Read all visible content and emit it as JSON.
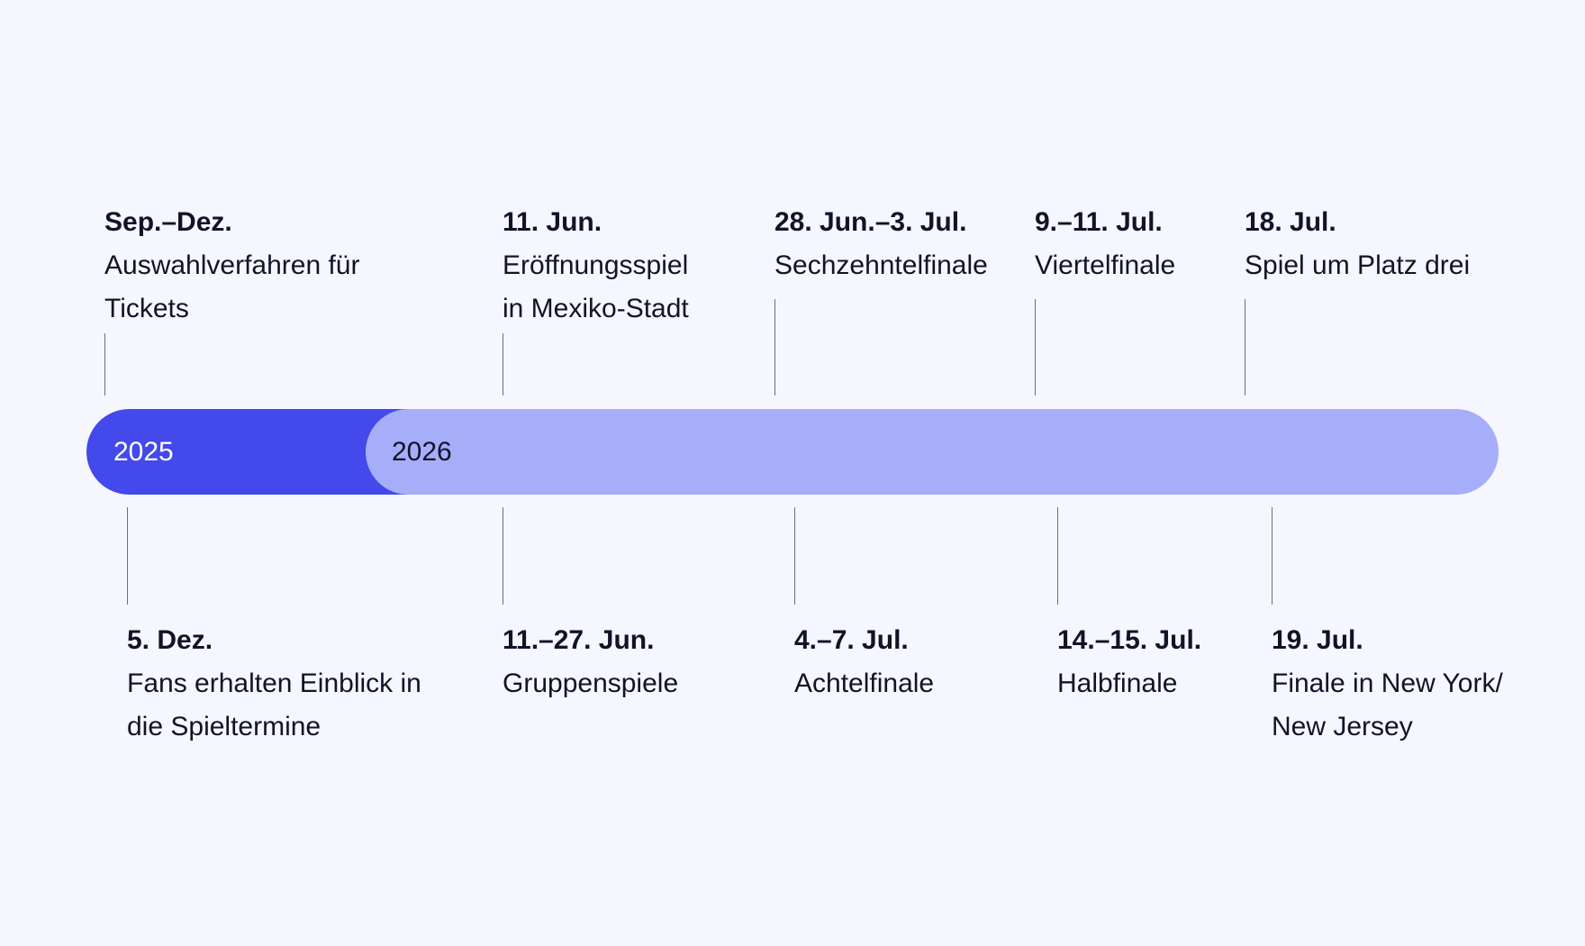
{
  "colors": {
    "year_2025": "#4349ea",
    "year_2026": "#a6aefa",
    "background": "#f5f6fe"
  },
  "years": [
    "2025",
    "2026"
  ],
  "top_events": [
    {
      "date": "Sep.–Dez.",
      "lines": [
        "Auswahlverfahren für",
        "Tickets"
      ]
    },
    {
      "date": "11. Jun.",
      "lines": [
        "Eröffnungsspiel",
        "in Mexiko-Stadt"
      ]
    },
    {
      "date": "28. Jun.–3. Jul.",
      "lines": [
        "Sechzehntelfinale"
      ]
    },
    {
      "date": "9.–11. Jul.",
      "lines": [
        "Viertelfinale"
      ]
    },
    {
      "date": "18. Jul.",
      "lines": [
        "Spiel um Platz drei"
      ]
    }
  ],
  "bottom_events": [
    {
      "date": "5. Dez.",
      "lines": [
        "Fans erhalten Einblick in",
        "die Spieltermine"
      ]
    },
    {
      "date": "11.–27. Jun.",
      "lines": [
        "Gruppenspiele"
      ]
    },
    {
      "date": "4.–7. Jul.",
      "lines": [
        "Achtelfinale"
      ]
    },
    {
      "date": "14.–15. Jul.",
      "lines": [
        "Halbfinale"
      ]
    },
    {
      "date": "19. Jul.",
      "lines": [
        "Finale in New York/",
        "New Jersey"
      ]
    }
  ]
}
